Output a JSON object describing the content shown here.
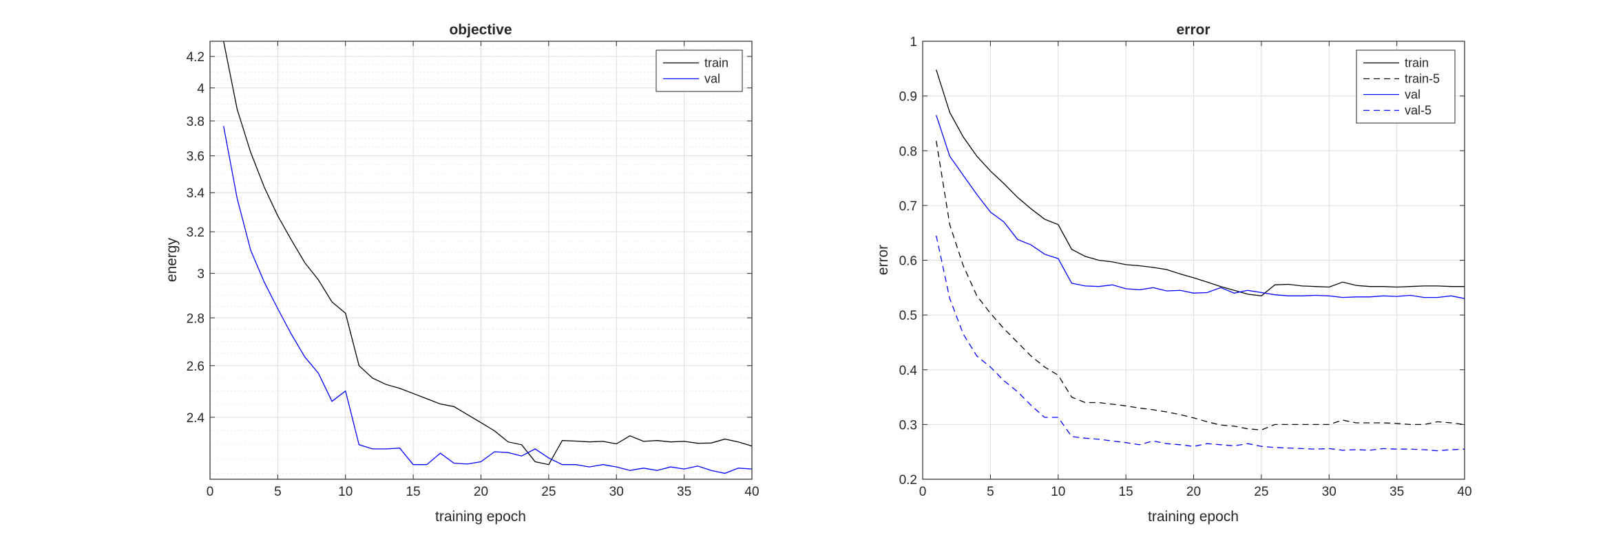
{
  "chart_data": [
    {
      "type": "line",
      "title": "objective",
      "xlabel": "training epoch",
      "ylabel": "energy",
      "y_scale": "log",
      "xlim": [
        0,
        40
      ],
      "ylim": [
        2.18,
        4.3
      ],
      "xticks": [
        0,
        5,
        10,
        15,
        20,
        25,
        30,
        35,
        40
      ],
      "yticks": [
        2.4,
        2.6,
        2.8,
        3,
        3.2,
        3.4,
        3.6,
        3.8,
        4,
        4.2
      ],
      "ytick_labels": [
        "2.4",
        "2.6",
        "2.8",
        "3",
        "3.2",
        "3.4",
        "3.6",
        "3.8",
        "4",
        "4.2"
      ],
      "grid": "on",
      "minor_grid": "on",
      "legend_position": "top-right",
      "x": [
        1,
        2,
        3,
        4,
        5,
        6,
        7,
        8,
        9,
        10,
        11,
        12,
        13,
        14,
        15,
        16,
        17,
        18,
        19,
        20,
        21,
        22,
        23,
        24,
        25,
        26,
        27,
        28,
        29,
        30,
        31,
        32,
        33,
        34,
        35,
        36,
        37,
        38,
        39,
        40
      ],
      "series": [
        {
          "name": "train",
          "color": "#000000",
          "dash": "solid",
          "values": [
            4.33,
            3.87,
            3.62,
            3.43,
            3.28,
            3.16,
            3.05,
            2.97,
            2.87,
            2.82,
            2.6,
            2.55,
            2.525,
            2.51,
            2.49,
            2.47,
            2.45,
            2.44,
            2.41,
            2.38,
            2.35,
            2.31,
            2.3,
            2.24,
            2.23,
            2.315,
            2.313,
            2.31,
            2.312,
            2.303,
            2.332,
            2.312,
            2.315,
            2.31,
            2.312,
            2.305,
            2.306,
            2.32,
            2.31,
            2.295
          ]
        },
        {
          "name": "val",
          "color": "#0000ff",
          "dash": "solid",
          "values": [
            3.77,
            3.37,
            3.11,
            2.96,
            2.84,
            2.73,
            2.635,
            2.57,
            2.46,
            2.5,
            2.3,
            2.285,
            2.285,
            2.288,
            2.23,
            2.23,
            2.27,
            2.235,
            2.232,
            2.24,
            2.275,
            2.272,
            2.26,
            2.285,
            2.253,
            2.23,
            2.23,
            2.222,
            2.23,
            2.222,
            2.21,
            2.218,
            2.21,
            2.222,
            2.215,
            2.225,
            2.21,
            2.2,
            2.218,
            2.215
          ]
        }
      ]
    },
    {
      "type": "line",
      "title": "error",
      "xlabel": "training epoch",
      "ylabel": "error",
      "y_scale": "linear",
      "xlim": [
        0,
        40
      ],
      "ylim": [
        0.2,
        1
      ],
      "xticks": [
        0,
        5,
        10,
        15,
        20,
        25,
        30,
        35,
        40
      ],
      "yticks": [
        0.2,
        0.3,
        0.4,
        0.5,
        0.6,
        0.7,
        0.8,
        0.9,
        1
      ],
      "ytick_labels": [
        "0.2",
        "0.3",
        "0.4",
        "0.5",
        "0.6",
        "0.7",
        "0.8",
        "0.9",
        "1"
      ],
      "grid": "on",
      "minor_grid": "off",
      "legend_position": "top-right",
      "x": [
        1,
        2,
        3,
        4,
        5,
        6,
        7,
        8,
        9,
        10,
        11,
        12,
        13,
        14,
        15,
        16,
        17,
        18,
        19,
        20,
        21,
        22,
        23,
        24,
        25,
        26,
        27,
        28,
        29,
        30,
        31,
        32,
        33,
        34,
        35,
        36,
        37,
        38,
        39,
        40
      ],
      "series": [
        {
          "name": "train",
          "color": "#000000",
          "dash": "solid",
          "values": [
            0.948,
            0.87,
            0.825,
            0.79,
            0.763,
            0.74,
            0.715,
            0.694,
            0.675,
            0.665,
            0.62,
            0.607,
            0.6,
            0.597,
            0.592,
            0.59,
            0.587,
            0.583,
            0.575,
            0.568,
            0.56,
            0.552,
            0.545,
            0.538,
            0.535,
            0.555,
            0.556,
            0.553,
            0.552,
            0.551,
            0.56,
            0.554,
            0.552,
            0.552,
            0.551,
            0.552,
            0.553,
            0.553,
            0.552,
            0.552
          ]
        },
        {
          "name": "train-5",
          "color": "#000000",
          "dash": "dashed",
          "values": [
            0.818,
            0.665,
            0.59,
            0.535,
            0.503,
            0.475,
            0.45,
            0.425,
            0.405,
            0.39,
            0.35,
            0.34,
            0.34,
            0.337,
            0.334,
            0.33,
            0.327,
            0.323,
            0.318,
            0.312,
            0.305,
            0.299,
            0.297,
            0.292,
            0.29,
            0.3,
            0.3,
            0.3,
            0.3,
            0.3,
            0.308,
            0.303,
            0.303,
            0.303,
            0.302,
            0.3,
            0.3,
            0.305,
            0.303,
            0.3
          ]
        },
        {
          "name": "val",
          "color": "#0000ff",
          "dash": "solid",
          "values": [
            0.865,
            0.79,
            0.755,
            0.72,
            0.688,
            0.67,
            0.638,
            0.628,
            0.611,
            0.603,
            0.558,
            0.553,
            0.552,
            0.555,
            0.548,
            0.546,
            0.55,
            0.544,
            0.545,
            0.54,
            0.541,
            0.55,
            0.54,
            0.545,
            0.541,
            0.537,
            0.535,
            0.535,
            0.536,
            0.535,
            0.532,
            0.533,
            0.533,
            0.535,
            0.534,
            0.536,
            0.532,
            0.532,
            0.535,
            0.53
          ]
        },
        {
          "name": "val-5",
          "color": "#0000ff",
          "dash": "dashed",
          "values": [
            0.645,
            0.53,
            0.465,
            0.425,
            0.405,
            0.38,
            0.36,
            0.335,
            0.313,
            0.313,
            0.278,
            0.275,
            0.273,
            0.27,
            0.267,
            0.263,
            0.27,
            0.265,
            0.263,
            0.26,
            0.265,
            0.263,
            0.261,
            0.265,
            0.26,
            0.258,
            0.257,
            0.256,
            0.255,
            0.256,
            0.253,
            0.254,
            0.253,
            0.256,
            0.255,
            0.255,
            0.254,
            0.252,
            0.254,
            0.255
          ]
        }
      ]
    }
  ]
}
